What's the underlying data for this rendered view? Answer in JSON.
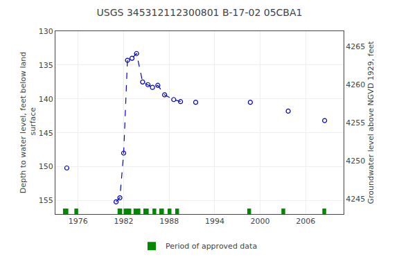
{
  "chart_data": {
    "type": "scatter",
    "title": "USGS 345312112300801 B-17-02 05CBA1",
    "ylabel": "Depth to water level, feet below land\n surface",
    "y2label": "Groundwater level above NGVD 1929, feet",
    "xlim": [
      1973,
      2011
    ],
    "xticks": [
      1976,
      1982,
      1988,
      1994,
      2000,
      2006
    ],
    "ylim": [
      157,
      130
    ],
    "yticks": [
      130,
      135,
      140,
      145,
      150,
      155
    ],
    "y2lim": [
      4243,
      4267
    ],
    "y2ticks": [
      4245,
      4250,
      4255,
      4260,
      4265
    ],
    "grid": true,
    "legend": "bottom",
    "series": [
      {
        "type": "line",
        "line_style": "dashed",
        "color": "#0000cc",
        "x": [
          1981.0,
          1981.5,
          1982.0,
          1982.5,
          1983.1,
          1983.7,
          1984.5,
          1985.2,
          1985.8,
          1986.5,
          1987.4,
          1988.6,
          1989.5
        ],
        "values": [
          155.2,
          154.6,
          148.0,
          134.3,
          134.0,
          133.3,
          137.5,
          137.9,
          138.3,
          138.0,
          139.4,
          140.1,
          140.4
        ]
      },
      {
        "type": "scatter",
        "marker": "open circle",
        "color": "#0000cc",
        "x": [
          1974.5,
          1981.0,
          1981.5,
          1982.0,
          1982.5,
          1983.1,
          1983.7,
          1984.5,
          1985.2,
          1985.8,
          1986.5,
          1987.4,
          1988.6,
          1989.5,
          1991.5,
          1998.7,
          2003.7,
          2008.5
        ],
        "values": [
          150.2,
          155.2,
          154.6,
          148.0,
          134.3,
          134.0,
          133.3,
          137.5,
          137.9,
          138.3,
          138.0,
          139.4,
          140.1,
          140.4,
          140.5,
          140.5,
          141.8,
          143.2
        ]
      },
      {
        "type": "span",
        "name": "Period of approved data",
        "color": "#008800",
        "ranges": [
          [
            1974.0,
            1974.7
          ],
          [
            1975.5,
            1976.0
          ],
          [
            1981.2,
            1981.8
          ],
          [
            1982.0,
            1983.0
          ],
          [
            1983.3,
            1984.2
          ],
          [
            1984.6,
            1985.3
          ],
          [
            1985.8,
            1986.3
          ],
          [
            1986.7,
            1987.3
          ],
          [
            1987.8,
            1988.3
          ],
          [
            1988.8,
            1989.3
          ],
          [
            1998.3,
            1998.8
          ],
          [
            2002.8,
            2003.3
          ],
          [
            2008.2,
            2008.7
          ]
        ]
      }
    ]
  }
}
